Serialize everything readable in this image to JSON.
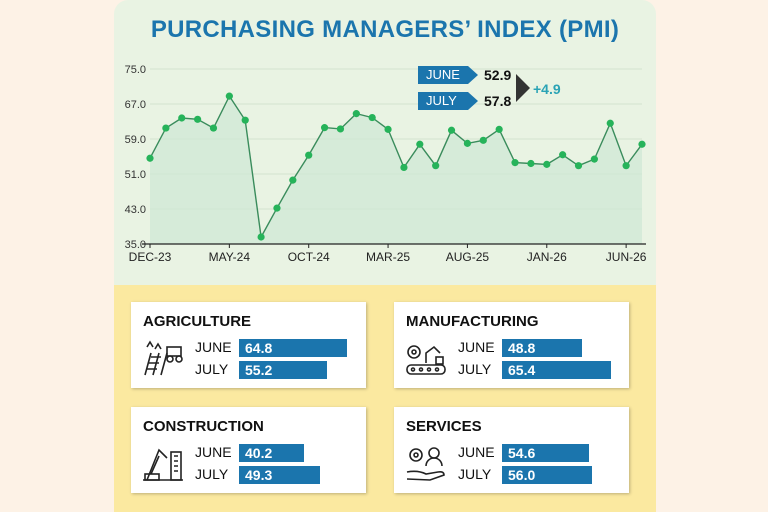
{
  "title": "PURCHASING MANAGERS’ INDEX (PMI)",
  "chart_data": {
    "type": "line",
    "y_ticks": [
      "75.0",
      "67.0",
      "59.0",
      "51.0",
      "43.0",
      "35.0"
    ],
    "ylim": [
      35,
      75
    ],
    "x_tick_labels": [
      "DEC-23",
      "MAY-24",
      "OCT-24",
      "MAR-25",
      "AUG-25",
      "JAN-26",
      "JUN-26"
    ],
    "x_tick_index": [
      0,
      5,
      10,
      15,
      20,
      25,
      30
    ],
    "values": [
      54.6,
      61.5,
      63.8,
      63.5,
      61.5,
      68.8,
      63.3,
      36.6,
      43.2,
      49.6,
      55.3,
      61.6,
      61.3,
      64.8,
      63.9,
      61.2,
      52.5,
      57.8,
      52.9,
      61.0,
      58.0,
      58.7,
      61.2,
      53.6,
      53.4,
      53.2,
      55.4,
      52.9,
      54.4,
      62.6,
      52.9,
      57.8
    ],
    "line_color": "#3a8c5c",
    "marker_color": "#26b35a",
    "fill_color": "#cfe8d6"
  },
  "legend": {
    "june_label": "JUNE",
    "june_value": "52.9",
    "july_label": "JULY",
    "july_value": "57.8",
    "change": "+4.9"
  },
  "sectors": [
    {
      "name": "AGRICULTURE",
      "icon": "agriculture-icon",
      "june_label": "JUNE",
      "june": "64.8",
      "june_frac": 0.868,
      "july_label": "JULY",
      "july": "55.2",
      "july_frac": 0.708
    },
    {
      "name": "MANUFACTURING",
      "icon": "manufacturing-icon",
      "june_label": "JUNE",
      "june": "48.8",
      "june_frac": 0.644,
      "july_label": "JULY",
      "july": "65.4",
      "july_frac": 0.878
    },
    {
      "name": "CONSTRUCTION",
      "icon": "construction-icon",
      "june_label": "JUNE",
      "june": "40.2",
      "june_frac": 0.522,
      "july_label": "JULY",
      "july": "49.3",
      "july_frac": 0.651
    },
    {
      "name": "SERVICES",
      "icon": "services-icon",
      "june_label": "JUNE",
      "june": "54.6",
      "june_frac": 0.703,
      "july_label": "JULY",
      "july": "56.0",
      "july_frac": 0.722
    }
  ]
}
